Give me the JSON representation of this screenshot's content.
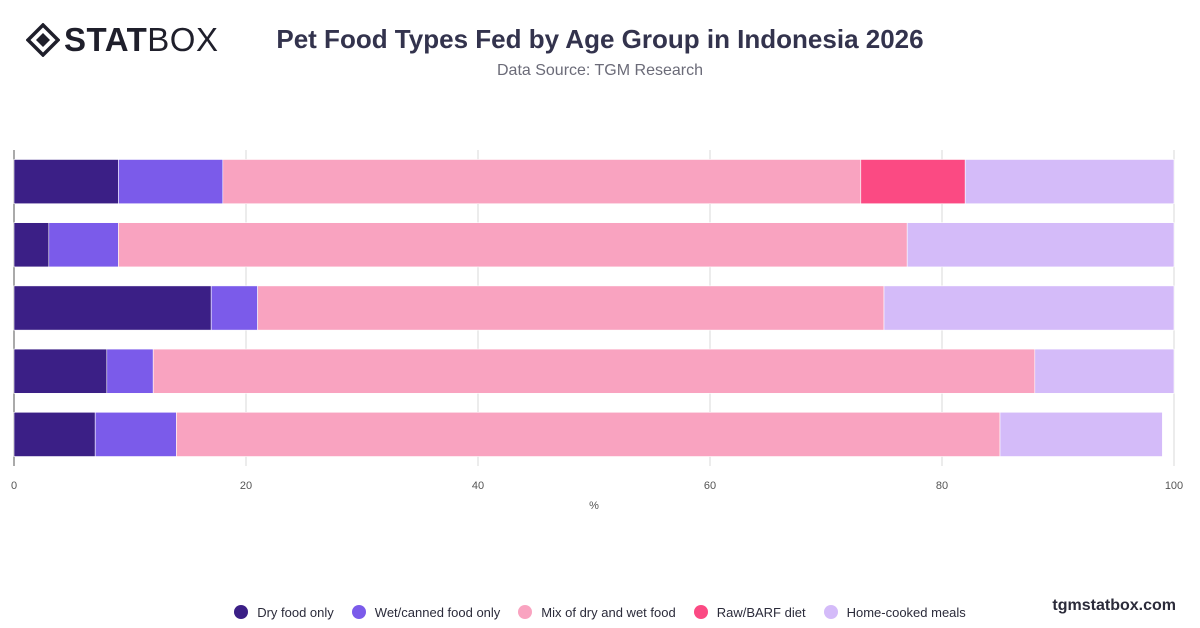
{
  "brand": {
    "logo_bold": "STAT",
    "logo_light": "BOX",
    "watermark": "tgmstatbox.com"
  },
  "header": {
    "title": "Pet Food Types Fed by Age Group in Indonesia 2026",
    "subtitle": "Data Source: TGM Research"
  },
  "chart_data": {
    "type": "bar",
    "orientation": "horizontal",
    "stacked": true,
    "categories": [
      "",
      "",
      "",
      "",
      ""
    ],
    "series": [
      {
        "name": "Dry food only",
        "color": "#3b1f86",
        "values": [
          9,
          3,
          17,
          8,
          7
        ]
      },
      {
        "name": "Wet/canned food only",
        "color": "#7b5bea",
        "values": [
          9,
          6,
          4,
          4,
          7
        ]
      },
      {
        "name": "Mix of dry and wet food",
        "color": "#f9a3c0",
        "values": [
          55,
          68,
          54,
          76,
          71
        ]
      },
      {
        "name": "Raw/BARF diet",
        "color": "#fb4a83",
        "values": [
          9,
          0,
          0,
          0,
          0
        ]
      },
      {
        "name": "Home-cooked meals",
        "color": "#d4bbf9",
        "values": [
          18,
          23,
          25,
          12,
          14
        ]
      }
    ],
    "xlabel": "%",
    "ylabel": "",
    "xlim": [
      0,
      100
    ],
    "xticks": [
      "0",
      "20",
      "40",
      "60",
      "80",
      "100"
    ],
    "grid": true,
    "legend_position": "bottom"
  }
}
